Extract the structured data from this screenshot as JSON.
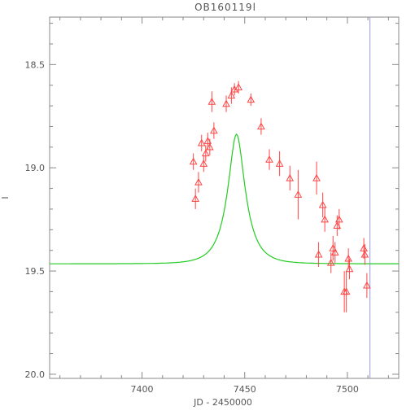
{
  "chart_data": {
    "type": "scatter",
    "title": "OB160119l",
    "xlabel": "JD - 2450000",
    "ylabel": "I",
    "xlim": [
      7355,
      7525
    ],
    "ylim": [
      20.02,
      18.27
    ],
    "y_inverted": true,
    "xticks": [
      7400,
      7450,
      7500
    ],
    "xtick_labels": [
      "7400",
      "7450",
      "7500"
    ],
    "yticks": [
      18.5,
      19.0,
      19.5,
      20.0
    ],
    "ytick_labels": [
      "18.5",
      "19.0",
      "19.5",
      "20.0"
    ],
    "grid": false,
    "legend": "none",
    "colors": {
      "points": "#ff4444",
      "model": "#22cc22",
      "vline": "#9999dd",
      "axes": "#888888",
      "text": "#555555"
    },
    "vertical_line": {
      "x": 7511
    },
    "model": {
      "name": "",
      "kind": "microlensing-fit",
      "t0": 7446,
      "tE": 9,
      "u0": 0.4,
      "baseline_mag": 19.465,
      "fs": 0.475,
      "x_range": [
        7355,
        7525
      ]
    },
    "series": [
      {
        "name": "",
        "marker": "triangle",
        "points": [
          {
            "x": 7425,
            "y": 18.97,
            "err": 0.04
          },
          {
            "x": 7426,
            "y": 19.15,
            "err": 0.05
          },
          {
            "x": 7427.5,
            "y": 19.07,
            "err": 0.05
          },
          {
            "x": 7429,
            "y": 18.88,
            "err": 0.04
          },
          {
            "x": 7430,
            "y": 18.98,
            "err": 0.04
          },
          {
            "x": 7431,
            "y": 18.93,
            "err": 0.04
          },
          {
            "x": 7432,
            "y": 18.87,
            "err": 0.04
          },
          {
            "x": 7433,
            "y": 18.9,
            "err": 0.04
          },
          {
            "x": 7434,
            "y": 18.68,
            "err": 0.05
          },
          {
            "x": 7435,
            "y": 18.82,
            "err": 0.04
          },
          {
            "x": 7441,
            "y": 18.69,
            "err": 0.04
          },
          {
            "x": 7443.5,
            "y": 18.65,
            "err": 0.04
          },
          {
            "x": 7445,
            "y": 18.62,
            "err": 0.03
          },
          {
            "x": 7447,
            "y": 18.61,
            "err": 0.03
          },
          {
            "x": 7453,
            "y": 18.67,
            "err": 0.03
          },
          {
            "x": 7458,
            "y": 18.8,
            "err": 0.04
          },
          {
            "x": 7462,
            "y": 18.96,
            "err": 0.05
          },
          {
            "x": 7467,
            "y": 18.98,
            "err": 0.06
          },
          {
            "x": 7472,
            "y": 19.05,
            "err": 0.06
          },
          {
            "x": 7476,
            "y": 19.13,
            "err": 0.12
          },
          {
            "x": 7485,
            "y": 19.05,
            "err": 0.08
          },
          {
            "x": 7486,
            "y": 19.42,
            "err": 0.06
          },
          {
            "x": 7488,
            "y": 19.18,
            "err": 0.06
          },
          {
            "x": 7489,
            "y": 19.25,
            "err": 0.06
          },
          {
            "x": 7492,
            "y": 19.46,
            "err": 0.05
          },
          {
            "x": 7493,
            "y": 19.39,
            "err": 0.06
          },
          {
            "x": 7494,
            "y": 19.41,
            "err": 0.05
          },
          {
            "x": 7495,
            "y": 19.28,
            "err": 0.05
          },
          {
            "x": 7496,
            "y": 19.25,
            "err": 0.05
          },
          {
            "x": 7498.5,
            "y": 19.6,
            "err": 0.1
          },
          {
            "x": 7499.5,
            "y": 19.6,
            "err": 0.1
          },
          {
            "x": 7500.5,
            "y": 19.44,
            "err": 0.05
          },
          {
            "x": 7501,
            "y": 19.49,
            "err": 0.05
          },
          {
            "x": 7508,
            "y": 19.39,
            "err": 0.05
          },
          {
            "x": 7508.5,
            "y": 19.42,
            "err": 0.05
          },
          {
            "x": 7509.5,
            "y": 19.57,
            "err": 0.06
          }
        ]
      }
    ]
  }
}
